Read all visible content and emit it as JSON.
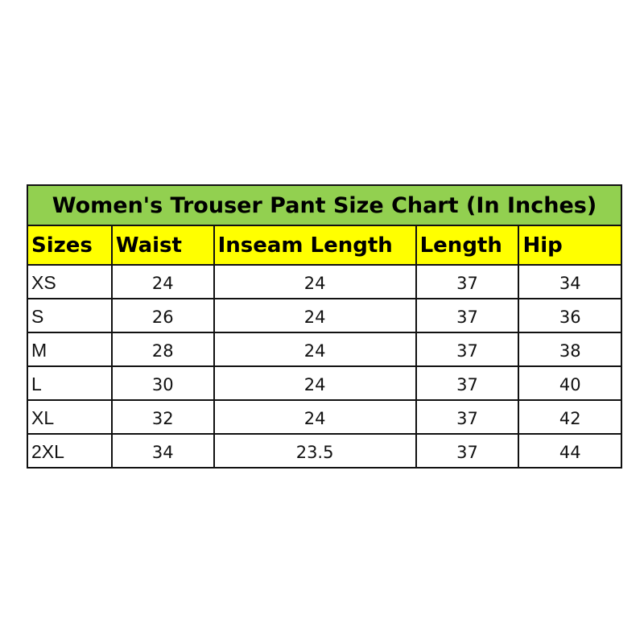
{
  "title": "Women's Trouser Pant Size Chart (In Inches)",
  "colors": {
    "title_bg": "#92d050",
    "header_bg": "#ffff00"
  },
  "headers": [
    "Sizes",
    "Waist",
    "Inseam Length",
    "Length",
    "Hip"
  ],
  "rows": [
    [
      "XS",
      "24",
      "24",
      "37",
      "34"
    ],
    [
      "S",
      "26",
      "24",
      "37",
      "36"
    ],
    [
      "M",
      "28",
      "24",
      "37",
      "38"
    ],
    [
      "L",
      "30",
      "24",
      "37",
      "40"
    ],
    [
      "XL",
      "32",
      "24",
      "37",
      "42"
    ],
    [
      "2XL",
      "34",
      "23.5",
      "37",
      "44"
    ]
  ]
}
